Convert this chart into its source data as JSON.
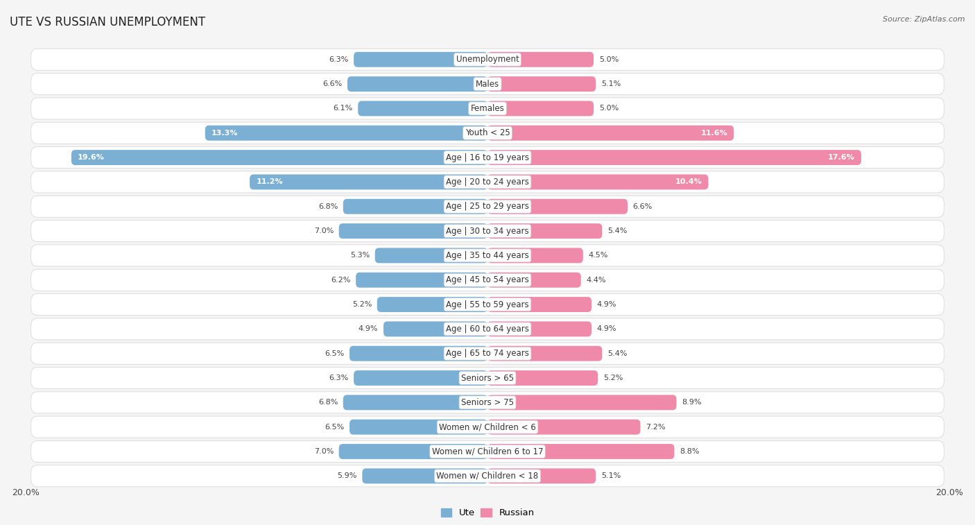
{
  "title": "UTE VS RUSSIAN UNEMPLOYMENT",
  "source": "Source: ZipAtlas.com",
  "categories": [
    "Unemployment",
    "Males",
    "Females",
    "Youth < 25",
    "Age | 16 to 19 years",
    "Age | 20 to 24 years",
    "Age | 25 to 29 years",
    "Age | 30 to 34 years",
    "Age | 35 to 44 years",
    "Age | 45 to 54 years",
    "Age | 55 to 59 years",
    "Age | 60 to 64 years",
    "Age | 65 to 74 years",
    "Seniors > 65",
    "Seniors > 75",
    "Women w/ Children < 6",
    "Women w/ Children 6 to 17",
    "Women w/ Children < 18"
  ],
  "ute_values": [
    6.3,
    6.6,
    6.1,
    13.3,
    19.6,
    11.2,
    6.8,
    7.0,
    5.3,
    6.2,
    5.2,
    4.9,
    6.5,
    6.3,
    6.8,
    6.5,
    7.0,
    5.9
  ],
  "russian_values": [
    5.0,
    5.1,
    5.0,
    11.6,
    17.6,
    10.4,
    6.6,
    5.4,
    4.5,
    4.4,
    4.9,
    4.9,
    5.4,
    5.2,
    8.9,
    7.2,
    8.8,
    5.1
  ],
  "ute_color": "#7bafd4",
  "russian_color": "#f08aaa",
  "ute_color_light": "#aacde8",
  "russian_color_light": "#f5b8cb",
  "bg_color": "#f0f0f0",
  "row_bg": "#f7f7f7",
  "row_border": "#e0e0e0",
  "max_val": 20.0,
  "bar_height": 0.62,
  "label_fontsize": 8.5,
  "title_fontsize": 12,
  "value_fontsize": 8.0,
  "inside_threshold": 10.0
}
